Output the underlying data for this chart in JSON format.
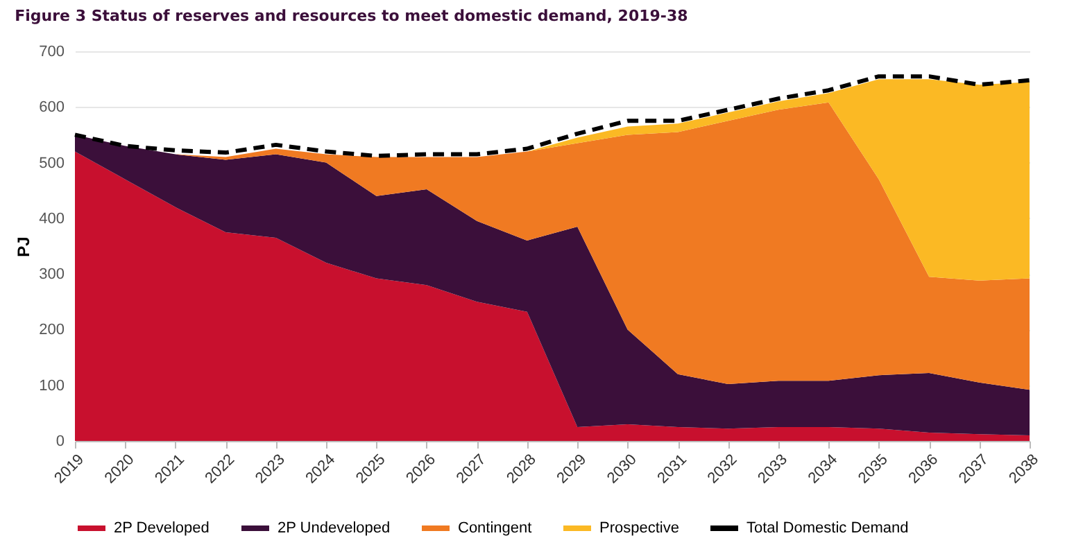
{
  "chart_data": {
    "type": "area",
    "title": "Figure 3    Status of reserves and resources to meet domestic demand, 2019-38",
    "ylabel": "PJ",
    "categories": [
      "2019",
      "2020",
      "2021",
      "2022",
      "2023",
      "2024",
      "2025",
      "2026",
      "2027",
      "2028",
      "2029",
      "2030",
      "2031",
      "2032",
      "2033",
      "2034",
      "2035",
      "2036",
      "2037",
      "2038"
    ],
    "stacked": true,
    "ylim": [
      0,
      700
    ],
    "yticks": [
      0,
      100,
      200,
      300,
      400,
      500,
      600,
      700
    ],
    "grid": "y",
    "legend": "bottom",
    "series": [
      {
        "name": "2P Developed",
        "color": "#c8102e",
        "values": [
          520,
          470,
          420,
          375,
          365,
          320,
          292,
          280,
          250,
          232,
          25,
          30,
          25,
          22,
          25,
          25,
          22,
          15,
          12,
          10
        ]
      },
      {
        "name": "2P Undeveloped",
        "color": "#3b0f3a",
        "values": [
          30,
          60,
          95,
          130,
          150,
          180,
          148,
          172,
          145,
          128,
          360,
          170,
          95,
          80,
          83,
          83,
          96,
          107,
          93,
          82
        ]
      },
      {
        "name": "Contingent",
        "color": "#f07a22",
        "values": [
          0,
          0,
          0,
          5,
          10,
          15,
          70,
          58,
          115,
          160,
          150,
          350,
          435,
          473,
          487,
          500,
          352,
          173,
          183,
          200
        ]
      },
      {
        "name": "Prospective",
        "color": "#fbb924",
        "values": [
          0,
          0,
          0,
          0,
          0,
          0,
          0,
          0,
          0,
          0,
          10,
          15,
          15,
          15,
          15,
          17,
          180,
          355,
          352,
          353
        ]
      },
      {
        "name": "Total Domestic Demand",
        "type": "line",
        "line_style": "dashed",
        "color": "#000000",
        "values": [
          550,
          530,
          522,
          518,
          532,
          520,
          512,
          515,
          515,
          525,
          552,
          575,
          575,
          595,
          615,
          630,
          655,
          655,
          640,
          648
        ]
      }
    ]
  }
}
